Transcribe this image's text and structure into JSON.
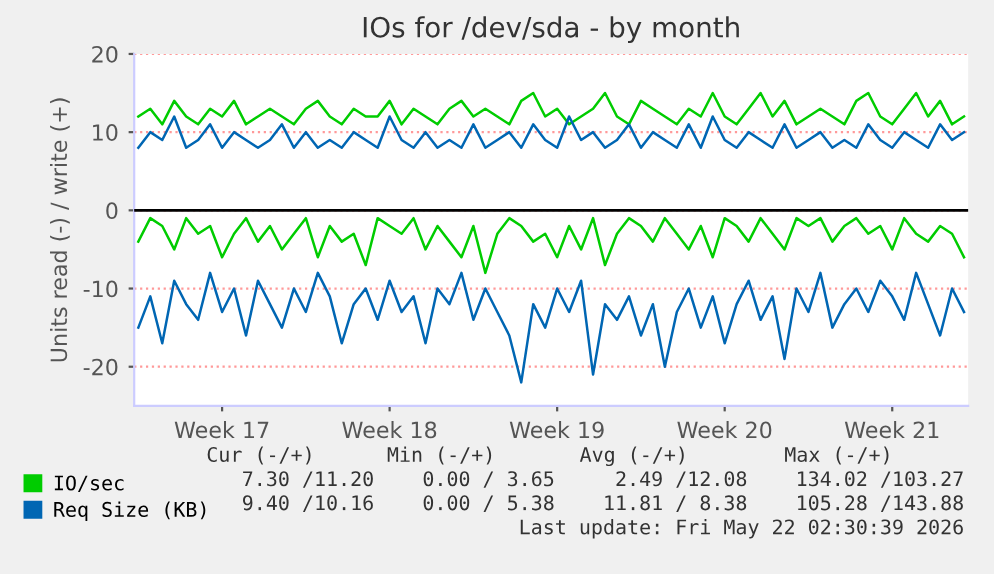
{
  "chart_data": {
    "type": "line",
    "title": "IOs for /dev/sda - by month",
    "ylabel": "Units read (-) / write (+)",
    "categories": [
      null,
      null,
      null,
      null,
      null,
      null,
      null,
      "Week 17",
      null,
      null,
      null,
      null,
      null,
      null,
      null,
      null,
      null,
      null,
      null,
      null,
      null,
      "Week 18",
      null,
      null,
      null,
      null,
      null,
      null,
      null,
      null,
      null,
      null,
      null,
      null,
      null,
      "Week 19",
      null,
      null,
      null,
      null,
      null,
      null,
      null,
      null,
      null,
      null,
      null,
      null,
      null,
      "Week 20",
      null,
      null,
      null,
      null,
      null,
      null,
      null,
      null,
      null,
      null,
      null,
      null,
      null,
      "Week 21",
      null,
      null,
      null,
      null,
      null,
      null
    ],
    "series": [
      {
        "name": "IO/sec",
        "color": "#00cc00",
        "values": [
          12,
          13,
          11,
          14,
          12,
          11,
          13,
          12,
          14,
          11,
          12,
          13,
          12,
          11,
          13,
          14,
          12,
          11,
          13,
          12,
          12,
          14,
          11,
          13,
          12,
          11,
          13,
          14,
          12,
          13,
          12,
          11,
          14,
          15,
          12,
          13,
          11,
          12,
          13,
          15,
          12,
          11,
          14,
          13,
          12,
          11,
          13,
          12,
          15,
          12,
          11,
          13,
          15,
          12,
          14,
          11,
          12,
          13,
          12,
          11,
          14,
          15,
          12,
          11,
          13,
          15,
          12,
          14,
          11,
          12
        ]
      },
      {
        "color": "#00cc00",
        "values": [
          -4,
          -1,
          -2,
          -5,
          -1,
          -3,
          -2,
          -6,
          -3,
          -1,
          -4,
          -2,
          -5,
          -3,
          -1,
          -6,
          -2,
          -4,
          -3,
          -7,
          -1,
          -2,
          -3,
          -1,
          -5,
          -2,
          -4,
          -6,
          -2,
          -8,
          -3,
          -1,
          -2,
          -4,
          -3,
          -6,
          -2,
          -5,
          -1,
          -7,
          -3,
          -1,
          -2,
          -4,
          -1,
          -3,
          -5,
          -2,
          -6,
          -1,
          -2,
          -4,
          -1,
          -3,
          -5,
          -1,
          -2,
          -1,
          -4,
          -2,
          -1,
          -3,
          -2,
          -5,
          -1,
          -3,
          -4,
          -2,
          -3,
          -6
        ]
      },
      {
        "name": "Req Size (KB)",
        "color": "#0066b3",
        "values": [
          8,
          10,
          9,
          12,
          8,
          9,
          11,
          8,
          10,
          9,
          8,
          9,
          11,
          8,
          10,
          8,
          9,
          8,
          10,
          9,
          8,
          12,
          9,
          8,
          10,
          8,
          9,
          8,
          11,
          8,
          9,
          10,
          8,
          11,
          9,
          8,
          12,
          9,
          10,
          8,
          9,
          11,
          8,
          10,
          9,
          8,
          11,
          8,
          12,
          9,
          8,
          10,
          9,
          8,
          11,
          8,
          9,
          10,
          8,
          9,
          8,
          11,
          9,
          8,
          10,
          9,
          8,
          11,
          9,
          10
        ]
      },
      {
        "color": "#0066b3",
        "values": [
          -15,
          -11,
          -17,
          -9,
          -12,
          -14,
          -8,
          -13,
          -10,
          -16,
          -9,
          -12,
          -15,
          -10,
          -13,
          -8,
          -11,
          -17,
          -12,
          -10,
          -14,
          -9,
          -13,
          -11,
          -17,
          -10,
          -12,
          -8,
          -14,
          -10,
          -13,
          -16,
          -22,
          -12,
          -15,
          -10,
          -13,
          -9,
          -21,
          -12,
          -14,
          -11,
          -16,
          -12,
          -20,
          -13,
          -10,
          -15,
          -11,
          -17,
          -12,
          -9,
          -14,
          -11,
          -19,
          -10,
          -13,
          -8,
          -15,
          -12,
          -10,
          -13,
          -9,
          -11,
          -14,
          -8,
          -12,
          -16,
          -10,
          -13
        ]
      }
    ],
    "ylim": [
      -25,
      20
    ],
    "yticks": [
      -20,
      -10,
      0,
      10,
      20
    ],
    "grid": "y",
    "legend": "bottom left",
    "marker": "none",
    "line_style": "solid",
    "ref_lines": [
      {
        "axis": "y",
        "value": 0,
        "color": "#000000"
      }
    ],
    "annotations": [
      "Cur (-/+)      Min (-/+)       Avg (-/+)        Max (-/+)",
      "7.30 /11.20    0.00 / 3.65     2.49 /12.08    134.02 /103.27",
      "9.40 /10.16    0.00 / 5.38    11.81 / 8.38    105.28 /143.88",
      "Last update: Fri May 22 02:30:39 2026"
    ]
  }
}
